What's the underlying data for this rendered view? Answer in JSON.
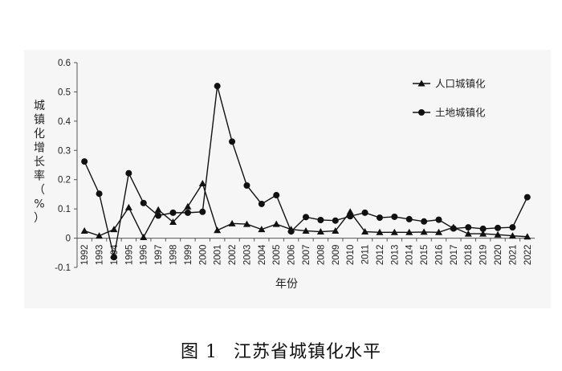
{
  "caption": {
    "figure_no": "图 1",
    "title": "江苏省城镇化水平"
  },
  "chart_data": {
    "type": "line",
    "xlabel": "年份",
    "ylabel": "城镇化增长率（%）",
    "ylim": [
      -0.1,
      0.6
    ],
    "yticks": [
      "-0.1",
      "0",
      "0.1",
      "0.2",
      "0.3",
      "0.4",
      "0.5",
      "0.6"
    ],
    "legend_position": "top-right",
    "x": [
      "1992",
      "1993",
      "1994",
      "1995",
      "1996",
      "1997",
      "1998",
      "1999",
      "2000",
      "2001",
      "2002",
      "2003",
      "2004",
      "2005",
      "2006",
      "2007",
      "2008",
      "2009",
      "2010",
      "2011",
      "2012",
      "2013",
      "2014",
      "2015",
      "2016",
      "2017",
      "2018",
      "2019",
      "2020",
      "2021",
      "2022"
    ],
    "series": [
      {
        "name": "人口城镇化",
        "marker": "triangle",
        "color": "#111111",
        "values": [
          0.025,
          0.008,
          0.03,
          0.105,
          0.003,
          0.097,
          0.055,
          0.108,
          0.187,
          0.027,
          0.05,
          0.048,
          0.03,
          0.048,
          0.03,
          0.025,
          0.022,
          0.025,
          0.09,
          0.022,
          0.02,
          0.02,
          0.02,
          0.021,
          0.02,
          0.037,
          0.015,
          0.015,
          0.012,
          0.008,
          0.005
        ]
      },
      {
        "name": "土地城镇化",
        "marker": "circle",
        "color": "#111111",
        "values": [
          0.262,
          0.152,
          -0.065,
          0.222,
          0.12,
          0.077,
          0.087,
          0.087,
          0.09,
          0.52,
          0.33,
          0.18,
          0.117,
          0.147,
          0.023,
          0.072,
          0.062,
          0.06,
          0.075,
          0.087,
          0.07,
          0.073,
          0.065,
          0.057,
          0.063,
          0.033,
          0.037,
          0.032,
          0.035,
          0.037,
          0.14
        ]
      }
    ]
  }
}
